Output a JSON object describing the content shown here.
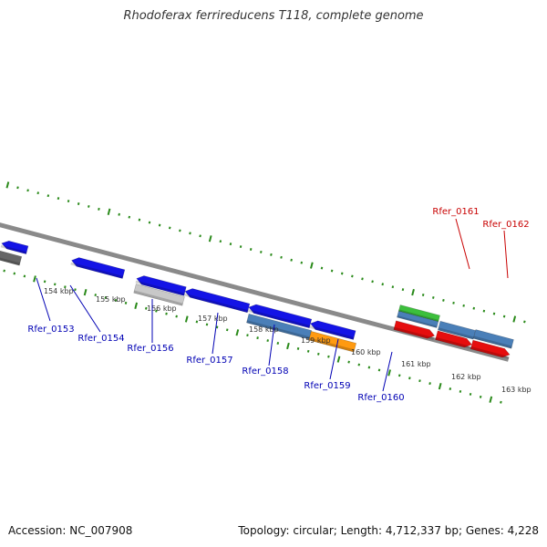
{
  "title": "Rhodoferax ferrireducens T118, complete genome",
  "footer": {
    "accession": "Accession: NC_007908",
    "summary": "Topology: circular; Length: 4,712,337 bp; Genes: 4,228"
  },
  "colors": {
    "backbone": "#8a8a8a",
    "tick": "#2a8a1a",
    "cds_blue": "#1414e6",
    "steel_blue": "#4a7fb8",
    "orange": "#ff9a10",
    "red": "#e60e0e",
    "green": "#3cbf3c",
    "dark_gray": "#666666",
    "light_gray": "#c8c8c8",
    "label_blue": "#0000b4",
    "label_red": "#c80000",
    "kbp_text": "#333333"
  },
  "scale_labels": [
    "154 kbp",
    "155 kbp",
    "156 kbp",
    "157 kbp",
    "158 kbp",
    "159 kbp",
    "160 kbp",
    "161 kbp",
    "162 kbp",
    "163 kbp"
  ],
  "gene_labels": [
    {
      "text": "Rfer_0153",
      "color": "label_blue"
    },
    {
      "text": "Rfer_0154",
      "color": "label_blue"
    },
    {
      "text": "Rfer_0156",
      "color": "label_blue"
    },
    {
      "text": "Rfer_0157",
      "color": "label_blue"
    },
    {
      "text": "Rfer_0158",
      "color": "label_blue"
    },
    {
      "text": "Rfer_0159",
      "color": "label_blue"
    },
    {
      "text": "Rfer_0160",
      "color": "label_blue"
    },
    {
      "text": "Rfer_0161",
      "color": "label_red"
    },
    {
      "text": "Rfer_0162",
      "color": "label_red"
    }
  ]
}
